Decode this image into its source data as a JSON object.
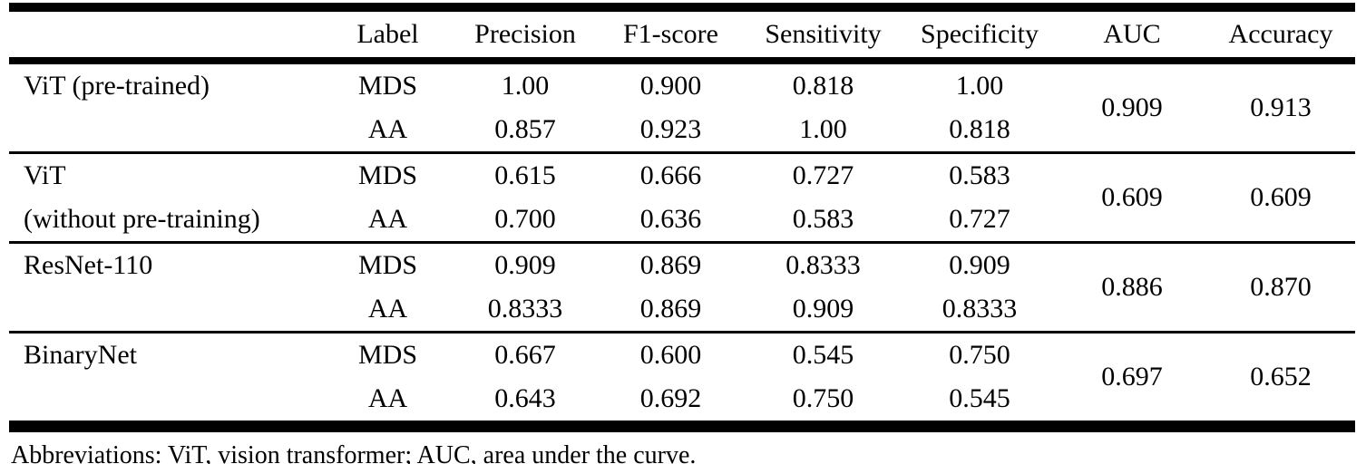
{
  "table": {
    "headers": [
      "",
      "Label",
      "Precision",
      "F1-score",
      "Sensitivity",
      "Specificity",
      "AUC",
      "Accuracy"
    ],
    "groups": [
      {
        "model_line1": "ViT (pre-trained)",
        "model_line2": "",
        "rows": [
          {
            "label": "MDS",
            "precision": "1.00",
            "f1_score": "0.900",
            "sensitivity": "0.818",
            "specificity": "1.00"
          },
          {
            "label": "AA",
            "precision": "0.857",
            "f1_score": "0.923",
            "sensitivity": "1.00",
            "specificity": "0.818"
          }
        ],
        "auc": "0.909",
        "accuracy": "0.913"
      },
      {
        "model_line1": "ViT",
        "model_line2": "(without pre-training)",
        "rows": [
          {
            "label": "MDS",
            "precision": "0.615",
            "f1_score": "0.666",
            "sensitivity": "0.727",
            "specificity": "0.583"
          },
          {
            "label": "AA",
            "precision": "0.700",
            "f1_score": "0.636",
            "sensitivity": "0.583",
            "specificity": "0.727"
          }
        ],
        "auc": "0.609",
        "accuracy": "0.609"
      },
      {
        "model_line1": "ResNet-110",
        "model_line2": "",
        "rows": [
          {
            "label": "MDS",
            "precision": "0.909",
            "f1_score": "0.869",
            "sensitivity": "0.8333",
            "specificity": "0.909"
          },
          {
            "label": "AA",
            "precision": "0.8333",
            "f1_score": "0.869",
            "sensitivity": "0.909",
            "specificity": "0.8333"
          }
        ],
        "auc": "0.886",
        "accuracy": "0.870"
      },
      {
        "model_line1": "BinaryNet",
        "model_line2": "",
        "rows": [
          {
            "label": "MDS",
            "precision": "0.667",
            "f1_score": "0.600",
            "sensitivity": "0.545",
            "specificity": "0.750"
          },
          {
            "label": "AA",
            "precision": "0.643",
            "f1_score": "0.692",
            "sensitivity": "0.750",
            "specificity": "0.545"
          }
        ],
        "auc": "0.697",
        "accuracy": "0.652"
      }
    ],
    "footnote": "Abbreviations: ViT, vision transformer; AUC, area under the curve.",
    "text_color": "#000000",
    "background_color": "#ffffff"
  }
}
